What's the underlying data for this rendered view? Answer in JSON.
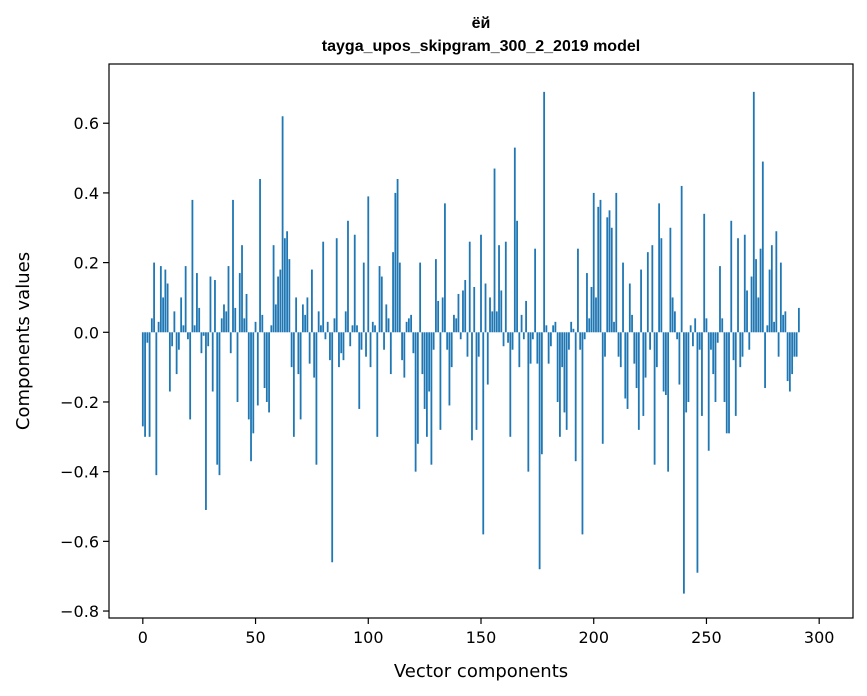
{
  "chart_data": {
    "type": "bar",
    "title": "ёй",
    "subtitle": "tayga_upos_skipgram_300_2_2019 model",
    "xlabel": "Vector components",
    "ylabel": "Components values",
    "xlim": [
      -15,
      315
    ],
    "ylim": [
      -0.82,
      0.77
    ],
    "xticks": [
      0,
      50,
      100,
      150,
      200,
      250,
      300
    ],
    "yticks": [
      -0.8,
      -0.6,
      -0.4,
      -0.2,
      0.0,
      0.2,
      0.4,
      0.6
    ],
    "ytick_labels": [
      "−0.8",
      "−0.6",
      "−0.4",
      "−0.2",
      "0.0",
      "0.2",
      "0.4",
      "0.6"
    ],
    "bar_color": "#1f77b4",
    "values": [
      -0.27,
      -0.3,
      -0.03,
      -0.3,
      0.04,
      0.2,
      -0.41,
      0.03,
      0.19,
      0.1,
      0.18,
      0.14,
      -0.17,
      -0.04,
      0.06,
      -0.12,
      -0.05,
      0.1,
      0.02,
      0.19,
      -0.02,
      -0.25,
      0.38,
      0.02,
      0.17,
      0.07,
      -0.06,
      -0.01,
      -0.51,
      -0.04,
      0.16,
      -0.17,
      0.15,
      -0.38,
      -0.41,
      0.04,
      0.08,
      0.06,
      0.19,
      -0.06,
      0.38,
      0.07,
      -0.2,
      0.17,
      0.25,
      0.04,
      0.11,
      -0.25,
      -0.37,
      -0.29,
      0.03,
      -0.21,
      0.44,
      0.05,
      -0.16,
      -0.2,
      -0.23,
      0.02,
      0.25,
      0.08,
      0.16,
      0.18,
      0.62,
      0.27,
      0.29,
      0.21,
      -0.1,
      -0.3,
      0.1,
      -0.12,
      -0.25,
      0.08,
      0.05,
      0.1,
      -0.09,
      0.18,
      -0.13,
      -0.38,
      0.06,
      0.02,
      0.26,
      -0.02,
      0.03,
      -0.08,
      -0.66,
      0.04,
      0.27,
      -0.1,
      -0.06,
      -0.08,
      0.06,
      0.32,
      -0.04,
      0.02,
      0.28,
      0.02,
      -0.22,
      -0.05,
      0.2,
      -0.07,
      0.39,
      -0.1,
      0.03,
      0.02,
      -0.3,
      0.19,
      0.16,
      -0.05,
      0.08,
      0.04,
      -0.12,
      0.23,
      0.4,
      0.44,
      0.2,
      -0.08,
      -0.13,
      0.03,
      0.04,
      0.05,
      -0.06,
      -0.4,
      -0.32,
      0.2,
      -0.12,
      -0.22,
      -0.3,
      -0.17,
      -0.38,
      -0.05,
      0.21,
      0.09,
      -0.28,
      0.1,
      0.37,
      -0.05,
      -0.21,
      -0.1,
      0.05,
      0.04,
      0.11,
      -0.02,
      0.12,
      0.15,
      -0.07,
      0.26,
      -0.31,
      0.13,
      -0.28,
      -0.07,
      0.28,
      -0.58,
      0.14,
      -0.15,
      0.1,
      0.06,
      0.47,
      0.06,
      0.25,
      0.12,
      -0.04,
      0.26,
      -0.03,
      -0.3,
      -0.05,
      0.53,
      0.32,
      -0.1,
      0.05,
      -0.02,
      0.09,
      -0.4,
      -0.09,
      -0.02,
      0.24,
      -0.09,
      -0.68,
      -0.35,
      0.69,
      0.02,
      -0.09,
      -0.04,
      0.02,
      0.03,
      -0.2,
      -0.3,
      -0.1,
      -0.23,
      -0.28,
      -0.05,
      0.03,
      0.01,
      -0.37,
      0.24,
      -0.05,
      -0.58,
      -0.02,
      0.17,
      0.04,
      0.13,
      0.4,
      0.1,
      0.36,
      0.38,
      -0.32,
      -0.07,
      0.33,
      0.35,
      0.3,
      0.03,
      0.4,
      -0.07,
      -0.1,
      0.2,
      -0.19,
      -0.22,
      0.14,
      0.05,
      -0.09,
      -0.16,
      -0.28,
      0.18,
      -0.24,
      -0.13,
      0.23,
      -0.05,
      0.25,
      -0.38,
      -0.1,
      0.37,
      0.27,
      -0.17,
      -0.18,
      -0.4,
      0.3,
      0.1,
      0.06,
      -0.02,
      -0.15,
      0.42,
      -0.75,
      -0.23,
      -0.2,
      0.02,
      -0.04,
      0.04,
      -0.69,
      -0.05,
      -0.24,
      0.34,
      0.04,
      -0.34,
      -0.05,
      -0.12,
      -0.2,
      -0.03,
      0.19,
      0.04,
      -0.2,
      -0.29,
      -0.29,
      0.32,
      -0.08,
      -0.24,
      0.27,
      -0.1,
      -0.07,
      0.28,
      0.12,
      -0.05,
      0.16,
      0.69,
      0.21,
      0.1,
      0.24,
      0.49,
      -0.16,
      0.02,
      0.18,
      0.25,
      0.03,
      0.29,
      -0.07,
      0.2,
      0.05,
      0.06,
      -0.14,
      -0.17,
      -0.12,
      -0.07,
      -0.07,
      0.07
    ]
  }
}
